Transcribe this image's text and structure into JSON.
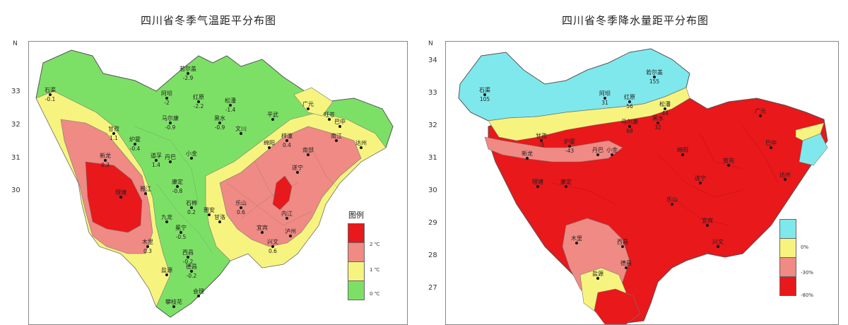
{
  "left_map": {
    "title": "四川省冬季气温距平分布图",
    "north_label": "N",
    "lat_ticks": [
      "33",
      "32",
      "31",
      "30"
    ],
    "legend": {
      "title": "图例",
      "items": [
        {
          "label": "2 ℃",
          "color": "#e8181b"
        },
        {
          "label": "1 ℃",
          "color": "#f08a84"
        },
        {
          "label": "0 ℃",
          "color": "#f6f47e"
        },
        {
          "label": "",
          "color": "#7de066"
        }
      ]
    },
    "cities": [
      {
        "name": "若尔盖",
        "value": "-2.9"
      },
      {
        "name": "石渠",
        "value": "-0.1"
      },
      {
        "name": "阿坝",
        "value": "-2"
      },
      {
        "name": "红原",
        "value": "-2.2"
      },
      {
        "name": "松潘",
        "value": "-1.4"
      },
      {
        "name": "马尔康",
        "value": "-0.9"
      },
      {
        "name": "黑水",
        "value": "-0.9"
      },
      {
        "name": "甘孜",
        "value": "1.1"
      },
      {
        "name": "炉霍",
        "value": "-0.4"
      },
      {
        "name": "新龙",
        "value": "0.3"
      },
      {
        "name": "道孚",
        "value": "1.4"
      },
      {
        "name": "理塘",
        "value": ""
      },
      {
        "name": "雅江",
        "value": ""
      },
      {
        "name": "康定",
        "value": "-0.8"
      },
      {
        "name": "丹巴",
        "value": ""
      },
      {
        "name": "小金",
        "value": ""
      },
      {
        "name": "九龙",
        "value": ""
      },
      {
        "name": "木里",
        "value": "0.3"
      },
      {
        "name": "石棉",
        "value": "0.2"
      },
      {
        "name": "甘洛",
        "value": ""
      },
      {
        "name": "冕宁",
        "value": "-0.5"
      },
      {
        "name": "西昌",
        "value": "-0.2"
      },
      {
        "name": "盐源",
        "value": ""
      },
      {
        "name": "德昌",
        "value": "-0.2"
      },
      {
        "name": "会理",
        "value": ""
      },
      {
        "name": "攀枝花",
        "value": ""
      },
      {
        "name": "广元",
        "value": ""
      },
      {
        "name": "旺苍",
        "value": ""
      },
      {
        "name": "巴中",
        "value": ""
      },
      {
        "name": "南江",
        "value": ""
      },
      {
        "name": "达州",
        "value": ""
      },
      {
        "name": "梓潼",
        "value": "0.4"
      },
      {
        "name": "绵阳",
        "value": ""
      },
      {
        "name": "南部",
        "value": ""
      },
      {
        "name": "遂宁",
        "value": ""
      },
      {
        "name": "内江",
        "value": ""
      },
      {
        "name": "乐山",
        "value": "0.6"
      },
      {
        "name": "雅安",
        "value": ""
      },
      {
        "name": "宜宾",
        "value": ""
      },
      {
        "name": "泸州",
        "value": ""
      },
      {
        "name": "兴文",
        "value": "0.6"
      },
      {
        "name": "文川",
        "value": ""
      },
      {
        "name": "平武",
        "value": ""
      }
    ]
  },
  "right_map": {
    "title": "四川省冬季降水量距平分布图",
    "north_label": "N",
    "lat_ticks": [
      "34",
      "33",
      "32",
      "31",
      "30",
      "29",
      "28",
      "27"
    ],
    "legend": {
      "items": [
        {
          "label": "",
          "color": "#7fe8ec"
        },
        {
          "label": "0%",
          "color": "#f6f47e"
        },
        {
          "label": "-30%",
          "color": "#f08a84"
        },
        {
          "label": "-80%",
          "color": "#e8181b"
        }
      ]
    },
    "cities": [
      {
        "name": "若尔盖",
        "value": "155"
      },
      {
        "name": "石渠",
        "value": "105"
      },
      {
        "name": "阿坝",
        "value": "31"
      },
      {
        "name": "红原",
        "value": "56"
      },
      {
        "name": "松潘",
        "value": "44"
      },
      {
        "name": "马尔康",
        "value": "68"
      },
      {
        "name": "黑水",
        "value": "32"
      },
      {
        "name": "甘孜",
        "value": "-3"
      },
      {
        "name": "炉霍",
        "value": "-43"
      },
      {
        "name": "新龙",
        "value": ""
      },
      {
        "name": "丹巴",
        "value": ""
      },
      {
        "name": "小金",
        "value": ""
      },
      {
        "name": "理塘",
        "value": ""
      },
      {
        "name": "康定",
        "value": ""
      },
      {
        "name": "木里",
        "value": ""
      },
      {
        "name": "盐源",
        "value": ""
      },
      {
        "name": "德昌",
        "value": ""
      },
      {
        "name": "西昌",
        "value": ""
      },
      {
        "name": "广元",
        "value": ""
      },
      {
        "name": "巴中",
        "value": ""
      },
      {
        "name": "达州",
        "value": ""
      },
      {
        "name": "绵阳",
        "value": ""
      },
      {
        "name": "南充",
        "value": ""
      },
      {
        "name": "遂宁",
        "value": ""
      },
      {
        "name": "乐山",
        "value": ""
      },
      {
        "name": "宜宾",
        "value": ""
      },
      {
        "name": "兴文",
        "value": ""
      }
    ]
  },
  "colors": {
    "warm2": "#e8181b",
    "warm1": "#f08a84",
    "neutral": "#f6f47e",
    "cool": "#7de066",
    "wet": "#7fe8ec"
  }
}
